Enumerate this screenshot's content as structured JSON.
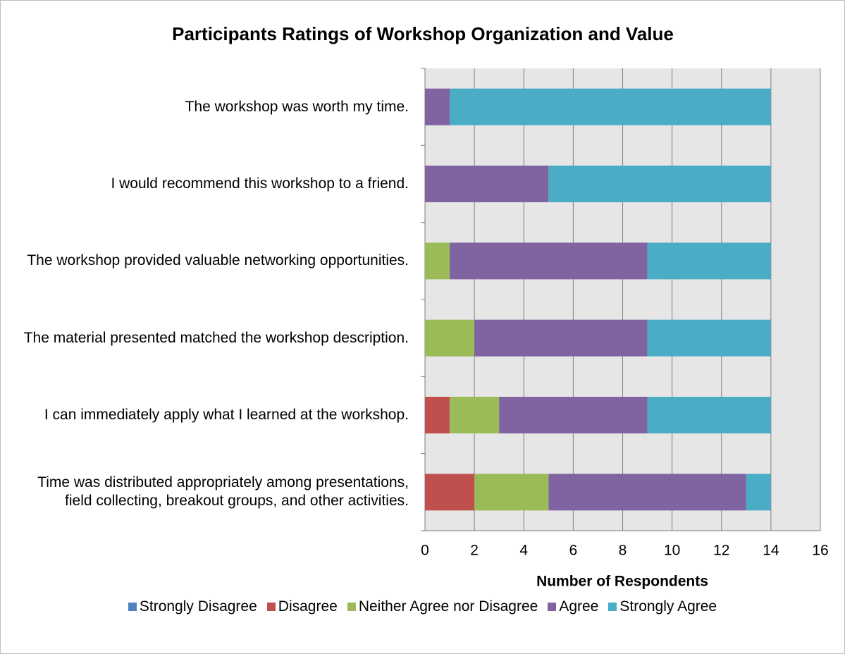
{
  "chart_data": {
    "type": "stacked-bar-horizontal",
    "title": "Participants Ratings of Workshop Organization and Value",
    "xlabel": "Number of Respondents",
    "categories": [
      "The workshop was worth my time.",
      "I would recommend this workshop to a friend.",
      "The workshop provided valuable networking opportunities.",
      "The material presented matched the workshop description.",
      "I can immediately apply what I learned at the workshop.",
      "Time was distributed appropriately among presentations, field collecting, breakout groups, and other activities."
    ],
    "series": [
      {
        "name": "Strongly Disagree",
        "color": "#4f81bd",
        "values": [
          0,
          0,
          0,
          0,
          0,
          0
        ]
      },
      {
        "name": "Disagree",
        "color": "#c0504d",
        "values": [
          0,
          0,
          0,
          0,
          1,
          2
        ]
      },
      {
        "name": "Neither Agree nor Disagree",
        "color": "#9bbb59",
        "values": [
          0,
          0,
          1,
          2,
          2,
          3
        ]
      },
      {
        "name": "Agree",
        "color": "#8064a2",
        "values": [
          1,
          5,
          8,
          7,
          6,
          8
        ]
      },
      {
        "name": "Strongly Agree",
        "color": "#4bacc6",
        "values": [
          13,
          9,
          5,
          5,
          5,
          1
        ]
      }
    ],
    "xlim": [
      0,
      16
    ],
    "xticks": [
      0,
      2,
      4,
      6,
      8,
      10,
      12,
      14,
      16
    ],
    "grid": true,
    "legend": "bottom"
  }
}
